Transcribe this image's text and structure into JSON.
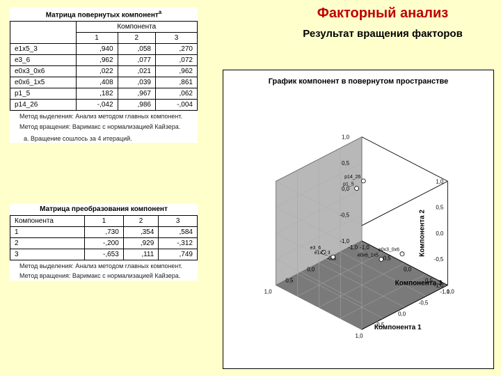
{
  "page": {
    "title": "Факторный анализ",
    "subtitle": "Результат вращения факторов",
    "bg": "#ffffcc",
    "title_color": "#c00000"
  },
  "table1": {
    "title": "Матрица повернутых компонент",
    "sup": "a",
    "header_group": "Компонента",
    "cols": [
      "1",
      "2",
      "3"
    ],
    "rows": [
      {
        "label": "e1x5_3",
        "v": [
          ",940",
          ",058",
          ",270"
        ]
      },
      {
        "label": "e3_6",
        "v": [
          ",962",
          ",077",
          ",072"
        ]
      },
      {
        "label": "e0x3_0x6",
        "v": [
          ",022",
          ",021",
          ",962"
        ]
      },
      {
        "label": "e0x6_1x5",
        "v": [
          ",408",
          ",039",
          ",861"
        ]
      },
      {
        "label": "p1_5",
        "v": [
          ",182",
          ",967",
          ",062"
        ]
      },
      {
        "label": "p14_26",
        "v": [
          "-,042",
          ",986",
          "-,004"
        ]
      }
    ],
    "note1": "Метод выделения: Анализ методом главных компонент.",
    "note2": " Метод вращения: Варимакс с нормализацией Кайзера.",
    "note3": "a. Вращение сошлось за 4 итераций."
  },
  "table2": {
    "title": "Матрица преобразования компонент",
    "rowhead": "Компонента",
    "cols": [
      "1",
      "2",
      "3"
    ],
    "rows": [
      {
        "label": "1",
        "v": [
          ",730",
          ",354",
          ",584"
        ]
      },
      {
        "label": "2",
        "v": [
          "-,200",
          ",929",
          "-,312"
        ]
      },
      {
        "label": "3",
        "v": [
          "-,653",
          ",111",
          ",749"
        ]
      }
    ],
    "note1": "Метод выделения: Анализ методом главных компонент.",
    "note2": " Метод вращения: Варимакс с нормализацией Кайзера."
  },
  "plot3d": {
    "title": "График компонент в повернутом пространстве",
    "axis1": "Компонента 1",
    "axis2": "Компонента 2",
    "axis3": "Компонента 3",
    "ticks": [
      "-1,0",
      "-0,5",
      "0,0",
      "0,5",
      "1,0"
    ],
    "face_back": "#cfcfcf",
    "face_left": "#b8b8b8",
    "face_bottom": "#7a7a7a",
    "points": [
      {
        "label": "p14_26",
        "x1": -0.042,
        "x2": 0.986,
        "x3": -0.004
      },
      {
        "label": "p1_5",
        "x1": 0.182,
        "x2": 0.967,
        "x3": 0.062
      },
      {
        "label": "e0x3_0x6",
        "x1": 0.022,
        "x2": 0.021,
        "x3": 0.962
      },
      {
        "label": "e3_6",
        "x1": 0.962,
        "x2": 0.077,
        "x3": 0.072
      },
      {
        "label": "e0x6_1x5",
        "x1": 0.408,
        "x2": 0.039,
        "x3": 0.861
      },
      {
        "label": "e1x5_3",
        "x1": 0.94,
        "x2": 0.058,
        "x3": 0.27
      }
    ]
  }
}
